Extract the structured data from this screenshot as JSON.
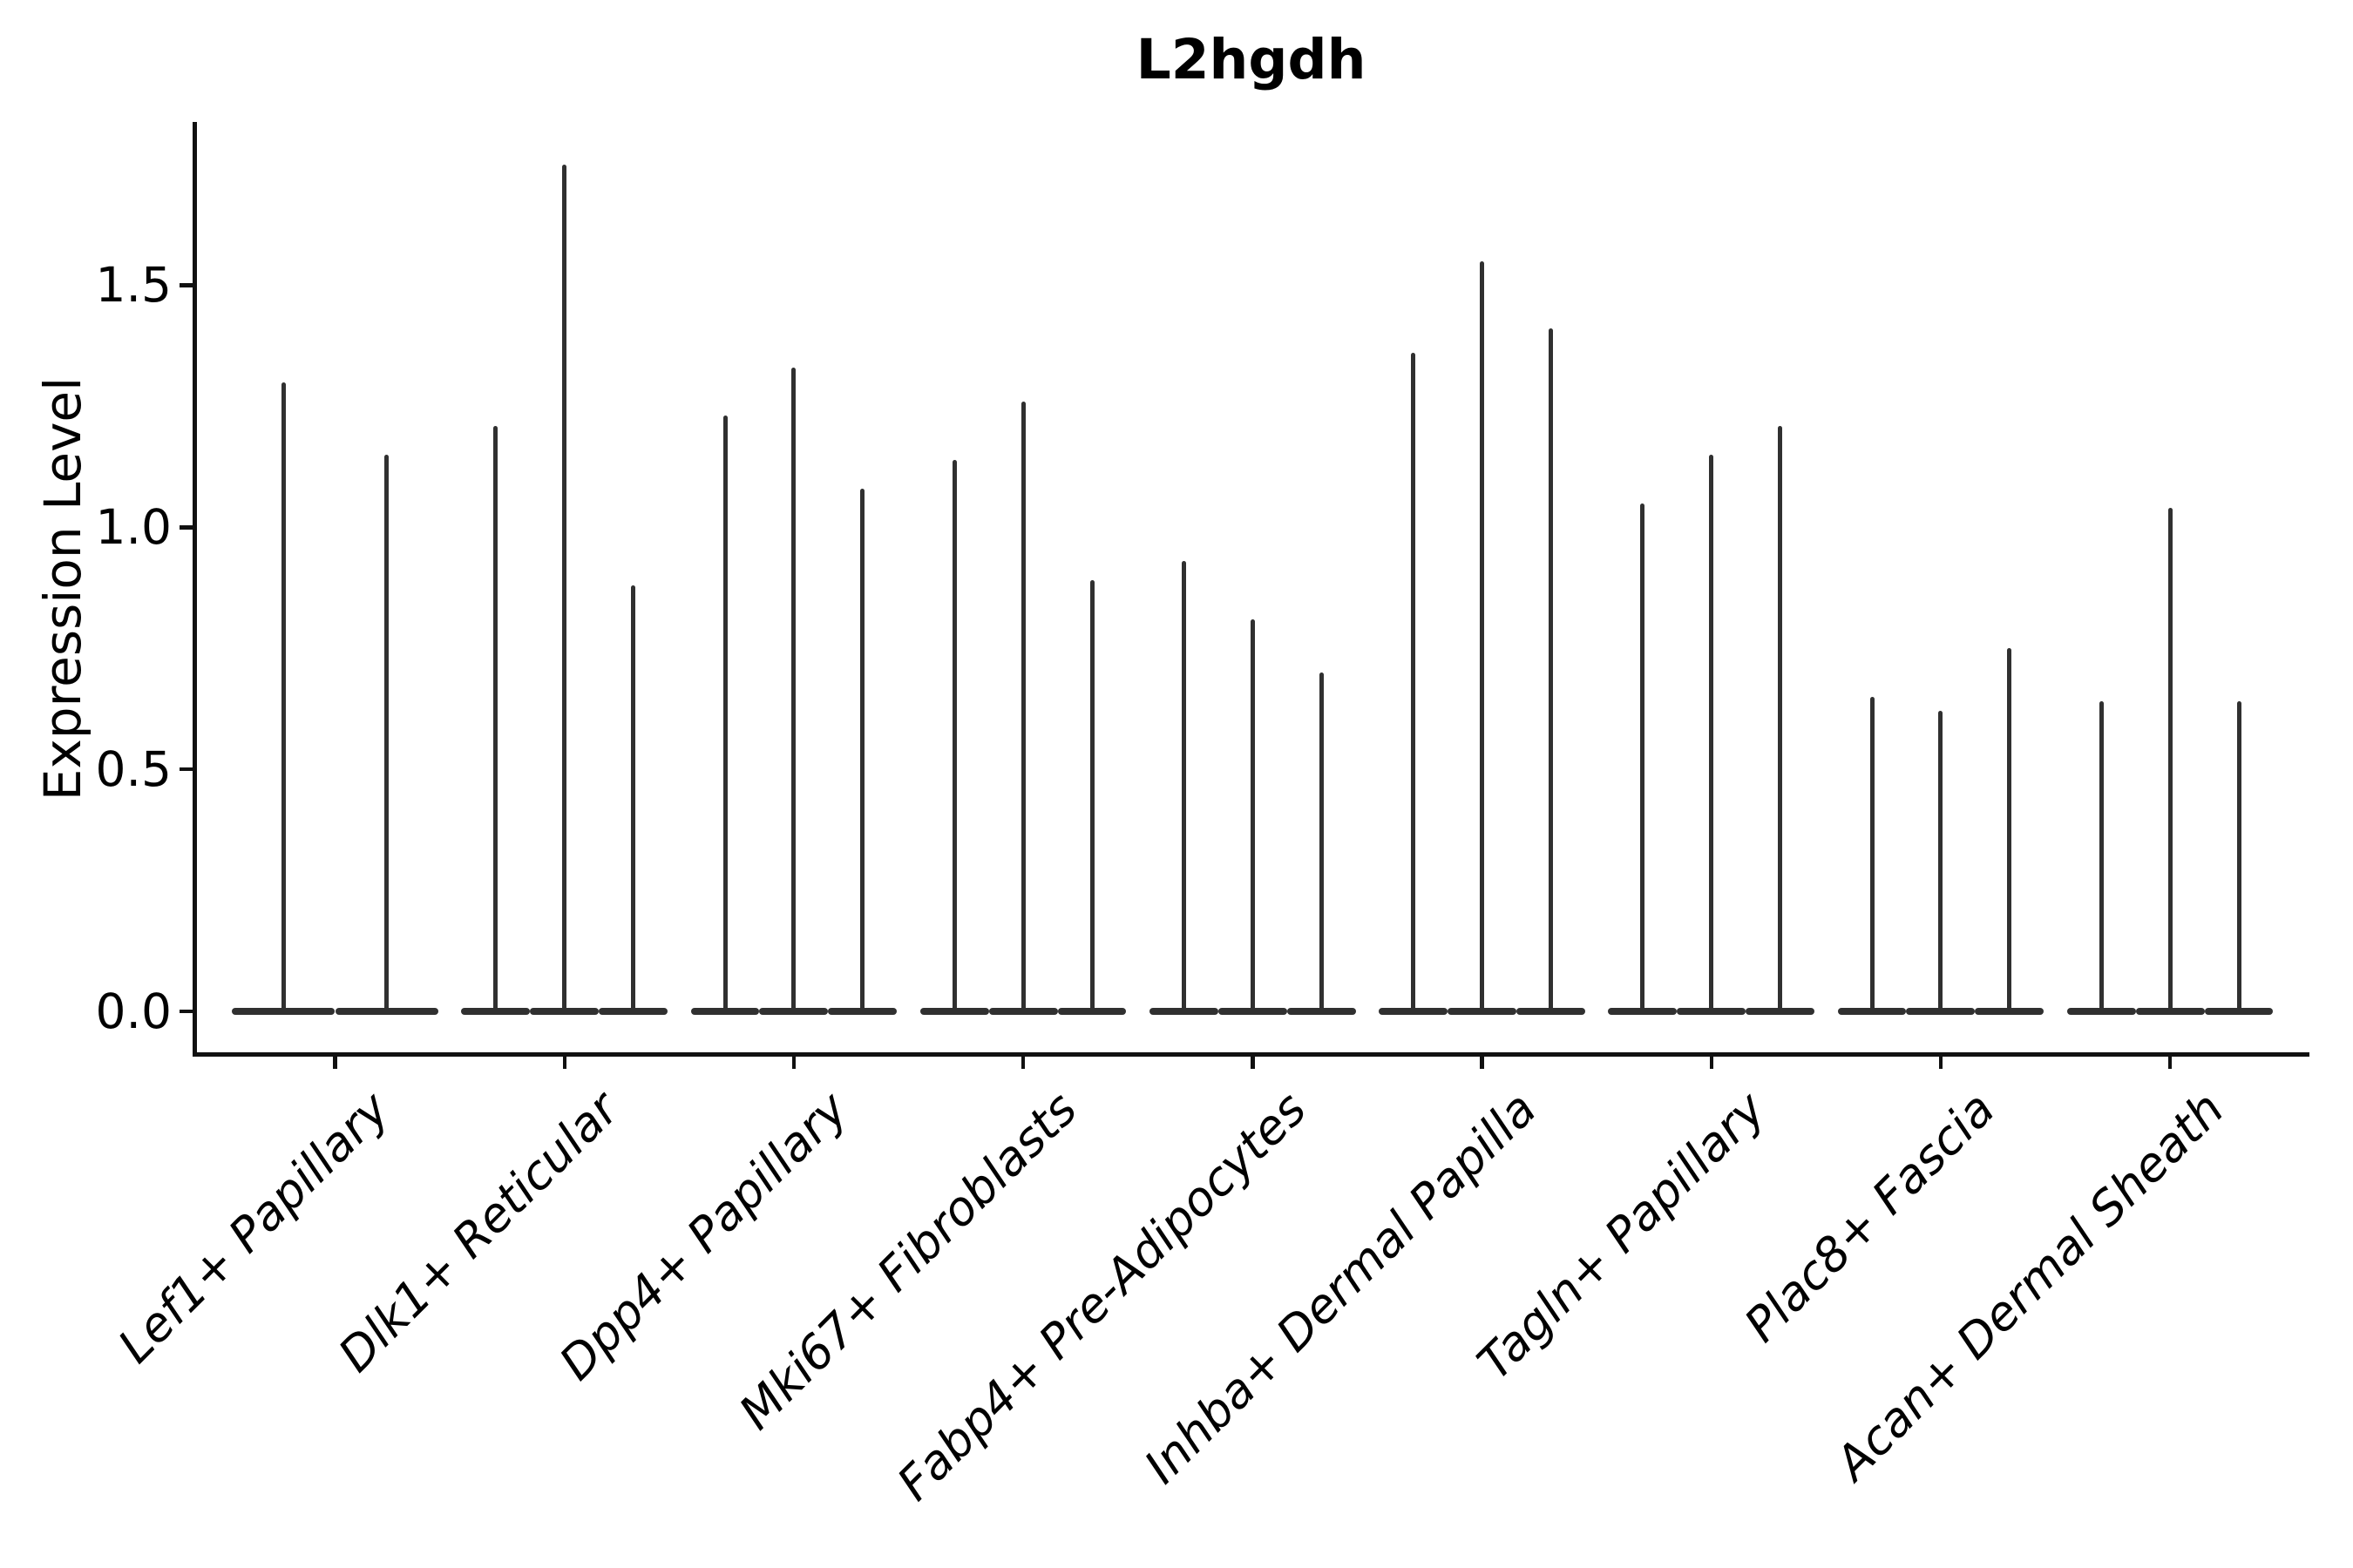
{
  "chart_data": {
    "type": "violin",
    "title": "L2hgdh",
    "ylabel": "Expression Level",
    "xlabel": "",
    "legend": "none",
    "grid": "off",
    "style": "collapsed spike violins with flat base at 0; only left and bottom spines",
    "ylim": [
      -0.085,
      1.845
    ],
    "yticks": [
      {
        "label": "0.0",
        "value": 0.0
      },
      {
        "label": "0.5",
        "value": 0.5
      },
      {
        "label": "1.0",
        "value": 1.0
      },
      {
        "label": "1.5",
        "value": 1.5
      }
    ],
    "categories": [
      "Lef1+ Papillary",
      "Dlk1+ Reticular",
      "Dpp4+ Papillary",
      "Mki67+ Fibroblasts",
      "Fabp4+ Pre-Adipocytes",
      "Inhba+ Dermal Papilla",
      "Tagln+ Papillary",
      "Plac8+ Fascia",
      "Acan+ Dermal Sheath"
    ],
    "groups": [
      {
        "label": "Lef1+ Papillary",
        "spike_maxima": [
          1.3,
          1.15
        ]
      },
      {
        "label": "Dlk1+ Reticular",
        "spike_maxima": [
          1.21,
          1.75,
          0.88
        ]
      },
      {
        "label": "Dpp4+ Papillary",
        "spike_maxima": [
          1.23,
          1.33,
          1.08
        ]
      },
      {
        "label": "Mki67+ Fibroblasts",
        "spike_maxima": [
          1.14,
          1.26,
          0.89
        ]
      },
      {
        "label": "Fabp4+ Pre-Adipocytes",
        "spike_maxima": [
          0.93,
          0.81,
          0.7
        ]
      },
      {
        "label": "Inhba+ Dermal Papilla",
        "spike_maxima": [
          1.36,
          1.55,
          1.41
        ]
      },
      {
        "label": "Tagln+ Papillary",
        "spike_maxima": [
          1.05,
          1.15,
          1.21
        ]
      },
      {
        "label": "Plac8+ Fascia",
        "spike_maxima": [
          0.65,
          0.62,
          0.75
        ]
      },
      {
        "label": "Acan+ Dermal Sheath",
        "spike_maxima": [
          0.64,
          1.04,
          0.64
        ]
      }
    ],
    "colors": {
      "violin": "#303030",
      "axis": "#111111",
      "text": "#000000",
      "background": "#ffffff"
    }
  }
}
